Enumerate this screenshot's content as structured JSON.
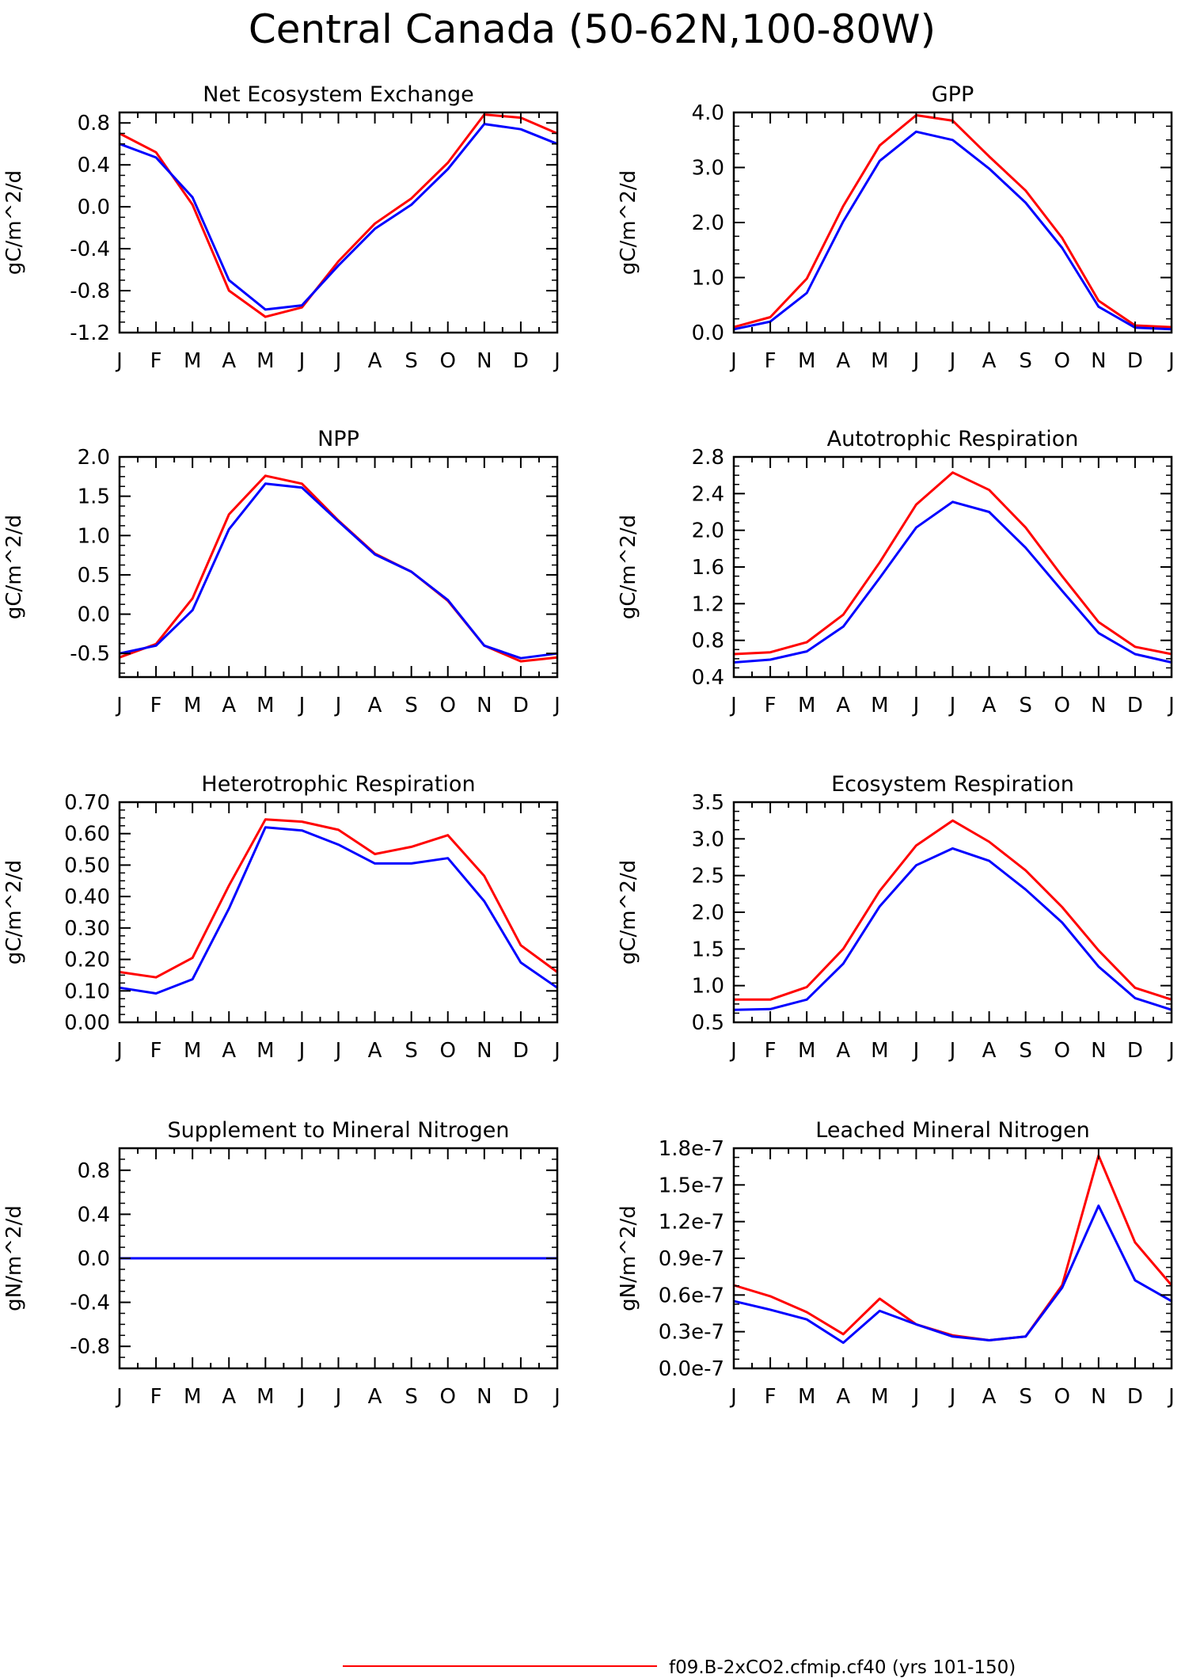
{
  "page_title": "Central Canada (50-62N,100-80W)",
  "colors": {
    "series_1": "#ff0000",
    "series_2": "#0000ff",
    "axes": "#000000"
  },
  "legend": {
    "entries": [
      {
        "label": "f09.B-2xCO2.cfmip.cf40 (yrs 101-150)",
        "color": "#ff0000"
      }
    ]
  },
  "chart_data": [
    {
      "type": "line",
      "title": "Net Ecosystem Exchange",
      "ylabel": "gC/m^2/d",
      "categories": [
        "J",
        "F",
        "M",
        "A",
        "M",
        "J",
        "J",
        "A",
        "S",
        "O",
        "N",
        "D",
        "J"
      ],
      "ylim": [
        -1.2,
        0.9
      ],
      "yticks": [
        -1.2,
        -0.8,
        -0.4,
        0.0,
        0.4,
        0.8
      ],
      "ytick_labels": [
        "-1.2",
        "-0.8",
        "-0.4",
        "0.0",
        "0.4",
        "0.8"
      ],
      "series": [
        {
          "color": "#ff0000",
          "values": [
            0.7,
            0.52,
            0.02,
            -0.8,
            -1.05,
            -0.96,
            -0.52,
            -0.16,
            0.08,
            0.42,
            0.88,
            0.85,
            0.7
          ]
        },
        {
          "color": "#0000ff",
          "values": [
            0.6,
            0.47,
            0.09,
            -0.7,
            -0.98,
            -0.94,
            -0.56,
            -0.21,
            0.02,
            0.36,
            0.79,
            0.74,
            0.6
          ]
        }
      ]
    },
    {
      "type": "line",
      "title": "GPP",
      "ylabel": "gC/m^2/d",
      "categories": [
        "J",
        "F",
        "M",
        "A",
        "M",
        "J",
        "J",
        "A",
        "S",
        "O",
        "N",
        "D",
        "J"
      ],
      "ylim": [
        0.0,
        4.0
      ],
      "yticks": [
        0.0,
        1.0,
        2.0,
        3.0,
        4.0
      ],
      "ytick_labels": [
        "0.0",
        "1.0",
        "2.0",
        "3.0",
        "4.0"
      ],
      "series": [
        {
          "color": "#ff0000",
          "values": [
            0.1,
            0.28,
            0.98,
            2.3,
            3.4,
            3.95,
            3.85,
            3.2,
            2.58,
            1.72,
            0.58,
            0.13,
            0.1
          ]
        },
        {
          "color": "#0000ff",
          "values": [
            0.06,
            0.2,
            0.72,
            2.02,
            3.12,
            3.65,
            3.5,
            2.98,
            2.36,
            1.54,
            0.47,
            0.09,
            0.06
          ]
        }
      ]
    },
    {
      "type": "line",
      "title": "NPP",
      "ylabel": "gC/m^2/d",
      "categories": [
        "J",
        "F",
        "M",
        "A",
        "M",
        "J",
        "J",
        "A",
        "S",
        "O",
        "N",
        "D",
        "J"
      ],
      "ylim": [
        -0.8,
        2.0
      ],
      "yticks": [
        -0.5,
        0.0,
        0.5,
        1.0,
        1.5,
        2.0
      ],
      "ytick_labels": [
        "-0.5",
        "0.0",
        "0.5",
        "1.0",
        "1.5",
        "2.0"
      ],
      "series": [
        {
          "color": "#ff0000",
          "values": [
            -0.55,
            -0.38,
            0.2,
            1.27,
            1.76,
            1.66,
            1.19,
            0.77,
            0.54,
            0.17,
            -0.4,
            -0.6,
            -0.55
          ]
        },
        {
          "color": "#0000ff",
          "values": [
            -0.5,
            -0.4,
            0.05,
            1.08,
            1.66,
            1.61,
            1.18,
            0.76,
            0.54,
            0.18,
            -0.4,
            -0.56,
            -0.5
          ]
        }
      ]
    },
    {
      "type": "line",
      "title": "Autotrophic Respiration",
      "ylabel": "gC/m^2/d",
      "categories": [
        "J",
        "F",
        "M",
        "A",
        "M",
        "J",
        "J",
        "A",
        "S",
        "O",
        "N",
        "D",
        "J"
      ],
      "ylim": [
        0.4,
        2.8
      ],
      "yticks": [
        0.4,
        0.8,
        1.2,
        1.6,
        2.0,
        2.4,
        2.8
      ],
      "ytick_labels": [
        "0.4",
        "0.8",
        "1.2",
        "1.6",
        "2.0",
        "2.4",
        "2.8"
      ],
      "series": [
        {
          "color": "#ff0000",
          "values": [
            0.65,
            0.67,
            0.78,
            1.08,
            1.65,
            2.28,
            2.63,
            2.44,
            2.03,
            1.5,
            1.0,
            0.73,
            0.65
          ]
        },
        {
          "color": "#0000ff",
          "values": [
            0.56,
            0.59,
            0.68,
            0.95,
            1.48,
            2.03,
            2.31,
            2.2,
            1.81,
            1.34,
            0.88,
            0.65,
            0.56
          ]
        }
      ]
    },
    {
      "type": "line",
      "title": "Heterotrophic Respiration",
      "ylabel": "gC/m^2/d",
      "categories": [
        "J",
        "F",
        "M",
        "A",
        "M",
        "J",
        "J",
        "A",
        "S",
        "O",
        "N",
        "D",
        "J"
      ],
      "ylim": [
        0.0,
        0.7
      ],
      "yticks": [
        0.0,
        0.1,
        0.2,
        0.3,
        0.4,
        0.5,
        0.6,
        0.7
      ],
      "ytick_labels": [
        "0.00",
        "0.10",
        "0.20",
        "0.30",
        "0.40",
        "0.50",
        "0.60",
        "0.70"
      ],
      "series": [
        {
          "color": "#ff0000",
          "values": [
            0.16,
            0.143,
            0.205,
            0.435,
            0.645,
            0.638,
            0.612,
            0.535,
            0.558,
            0.595,
            0.465,
            0.245,
            0.16
          ]
        },
        {
          "color": "#0000ff",
          "values": [
            0.11,
            0.092,
            0.137,
            0.362,
            0.62,
            0.61,
            0.565,
            0.505,
            0.505,
            0.522,
            0.385,
            0.19,
            0.11
          ]
        }
      ]
    },
    {
      "type": "line",
      "title": "Ecosystem Respiration",
      "ylabel": "gC/m^2/d",
      "categories": [
        "J",
        "F",
        "M",
        "A",
        "M",
        "J",
        "J",
        "A",
        "S",
        "O",
        "N",
        "D",
        "J"
      ],
      "ylim": [
        0.5,
        3.5
      ],
      "yticks": [
        0.5,
        1.0,
        1.5,
        2.0,
        2.5,
        3.0,
        3.5
      ],
      "ytick_labels": [
        "0.5",
        "1.0",
        "1.5",
        "2.0",
        "2.5",
        "3.0",
        "3.5"
      ],
      "series": [
        {
          "color": "#ff0000",
          "values": [
            0.81,
            0.81,
            0.98,
            1.5,
            2.29,
            2.91,
            3.25,
            2.96,
            2.57,
            2.07,
            1.48,
            0.97,
            0.81
          ]
        },
        {
          "color": "#0000ff",
          "values": [
            0.67,
            0.68,
            0.81,
            1.3,
            2.08,
            2.64,
            2.87,
            2.7,
            2.31,
            1.86,
            1.26,
            0.83,
            0.67
          ]
        }
      ]
    },
    {
      "type": "line",
      "title": "Supplement to Mineral Nitrogen",
      "ylabel": "gN/m^2/d",
      "categories": [
        "J",
        "F",
        "M",
        "A",
        "M",
        "J",
        "J",
        "A",
        "S",
        "O",
        "N",
        "D",
        "J"
      ],
      "ylim": [
        -1.0,
        1.0
      ],
      "yticks": [
        -0.8,
        -0.4,
        0.0,
        0.4,
        0.8
      ],
      "ytick_labels": [
        "-0.8",
        "-0.4",
        "0.0",
        "0.4",
        "0.8"
      ],
      "series": [
        {
          "color": "#ff0000",
          "values": [
            0,
            0,
            0,
            0,
            0,
            0,
            0,
            0,
            0,
            0,
            0,
            0,
            0
          ]
        },
        {
          "color": "#0000ff",
          "values": [
            0,
            0,
            0,
            0,
            0,
            0,
            0,
            0,
            0,
            0,
            0,
            0,
            0
          ]
        }
      ]
    },
    {
      "type": "line",
      "title": "Leached Mineral Nitrogen",
      "ylabel": "gN/m^2/d",
      "categories": [
        "J",
        "F",
        "M",
        "A",
        "M",
        "J",
        "J",
        "A",
        "S",
        "O",
        "N",
        "D",
        "J"
      ],
      "ylim": [
        0.0,
        1.8e-07
      ],
      "yticks": [
        0.0,
        3e-08,
        6e-08,
        9e-08,
        1.2e-07,
        1.5e-07,
        1.8e-07
      ],
      "ytick_labels": [
        "0.0e-7",
        "0.3e-7",
        "0.6e-7",
        "0.9e-7",
        "1.2e-7",
        "1.5e-7",
        "1.8e-7"
      ],
      "series": [
        {
          "color": "#ff0000",
          "values": [
            6.8e-08,
            5.9e-08,
            4.6e-08,
            2.8e-08,
            5.7e-08,
            3.6e-08,
            2.7e-08,
            2.3e-08,
            2.6e-08,
            6.8e-08,
            1.74e-07,
            1.03e-07,
            6.8e-08
          ]
        },
        {
          "color": "#0000ff",
          "values": [
            5.5e-08,
            4.8e-08,
            4e-08,
            2.1e-08,
            4.7e-08,
            3.6e-08,
            2.6e-08,
            2.3e-08,
            2.6e-08,
            6.6e-08,
            1.33e-07,
            7.2e-08,
            5.5e-08
          ]
        }
      ]
    }
  ]
}
